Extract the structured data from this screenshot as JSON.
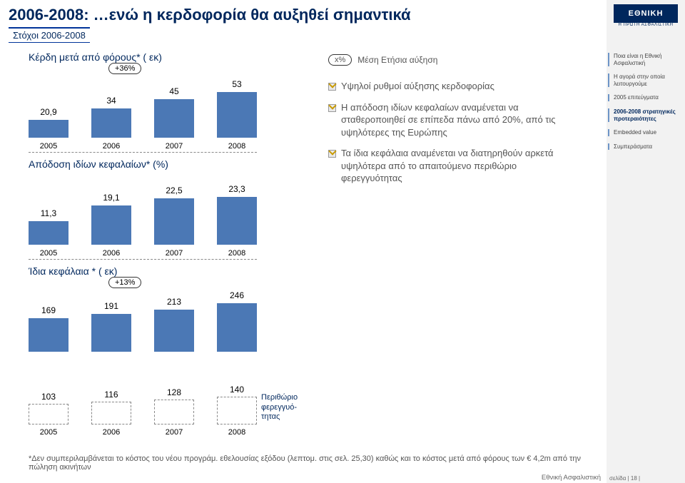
{
  "title": "2006-2008: …ενώ η κερδοφορία θα αυξηθεί σημαντικά",
  "subtitle": "Στόχοι 2006-2008",
  "sidebar": {
    "logo": "ΕΘΝΙΚΗ",
    "logo_sub": "Η ΠΡΩΤΗ ΑΣΦΑΛΙΣΤΙΚΗ",
    "items": [
      {
        "label": "Ποια είναι η Εθνική Ασφαλιστική"
      },
      {
        "label": "Η αγορά στην οποία λειτουργούμε"
      },
      {
        "label": "2005 επιτεύγματα"
      },
      {
        "label": "2006-2008 στρατηγικές προτεραιότητες",
        "active": true
      },
      {
        "label": "Embedded value"
      },
      {
        "label": "Συμπεράσματα"
      }
    ],
    "footer": "σελίδα | 18 |"
  },
  "legend_xpct": {
    "oval": "x%",
    "text": "Μέση Ετήσια αύξηση"
  },
  "chart_profit": {
    "title": "Κέρδη μετά από φόρους* ( εκ)",
    "badge": "+36%",
    "type": "bar",
    "values": [
      20.9,
      34,
      45,
      53
    ],
    "labels": [
      "20,9",
      "34",
      "45",
      "53"
    ],
    "xlabels": [
      "2005",
      "2006",
      "2007",
      "2008"
    ],
    "bar_colors": [
      "#4b78b5",
      "#4b78b5",
      "#4b78b5",
      "#4b78b5"
    ],
    "ylim": [
      0,
      60
    ]
  },
  "chart_roe": {
    "title": "Απόδοση ιδίων κεφαλαίων* (%)",
    "type": "bar",
    "values": [
      11.3,
      19.1,
      22.5,
      23.3
    ],
    "labels": [
      "11,3",
      "19,1",
      "22,5",
      "23,3"
    ],
    "xlabels": [
      "2005",
      "2006",
      "2007",
      "2008"
    ],
    "bar_colors": [
      "#4b78b5",
      "#4b78b5",
      "#4b78b5",
      "#4b78b5"
    ],
    "ylim": [
      0,
      25
    ]
  },
  "chart_equity": {
    "title": "Ίδια κεφάλαια * ( εκ)",
    "badge": "+13%",
    "type": "bar",
    "values": [
      169,
      191,
      213,
      246
    ],
    "labels": [
      "169",
      "191",
      "213",
      "246"
    ],
    "xlabels": [
      "",
      "",
      "",
      ""
    ],
    "bar_colors": [
      "#4b78b5",
      "#4b78b5",
      "#4b78b5",
      "#4b78b5"
    ],
    "ylim": [
      0,
      260
    ]
  },
  "chart_margin": {
    "type": "bar-dashed",
    "values": [
      103,
      116,
      128,
      140
    ],
    "labels": [
      "103",
      "116",
      "128",
      "140"
    ],
    "xlabels": [
      "2005",
      "2006",
      "2007",
      "2008"
    ],
    "side_label": "Περιθώριο φερεγγυό-\nτητας",
    "ylim": [
      0,
      260
    ]
  },
  "bullets": [
    "Υψηλοί ρυθμοί αύξησης κερδοφορίας",
    "Η απόδοση ιδίων κεφαλαίων αναμένεται να σταθεροποιηθεί σε επίπεδα πάνω από 20%, από τις υψηλότερες της Ευρώπης",
    "Τα ίδια κεφάλαια αναμένεται να διατηρηθούν αρκετά υψηλότερα  από το απαιτούμενο περιθώριο φερεγγυότητας"
  ],
  "footnote": "*Δεν συμπεριλαμβάνεται το κόστος του νέου προγράμ. εθελουσίας εξόδου (λεπτομ. στις σελ. 25,30) καθώς και το κόστος μετά από φόρους των € 4,2m από την πώληση ακινήτων",
  "slide_footer": "Εθνική Ασφαλιστική"
}
